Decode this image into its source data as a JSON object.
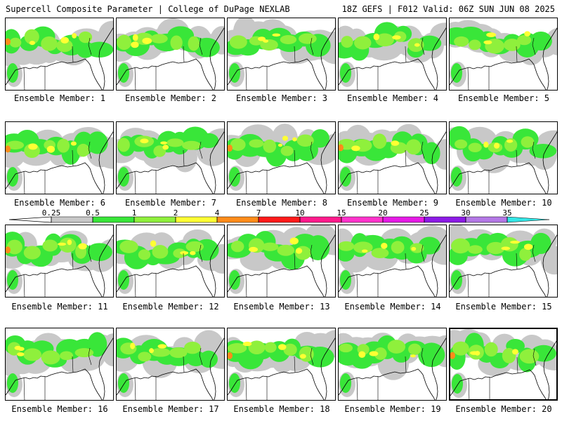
{
  "header": {
    "left": "Supercell Composite Parameter | College of DuPage NEXLAB",
    "right": "18Z GEFS | F012 Valid: 06Z SUN JUN 08 2025"
  },
  "legend": {
    "ticks": [
      "0.25",
      "0.5",
      "1",
      "2",
      "4",
      "7",
      "10",
      "15",
      "20",
      "25",
      "30",
      "35"
    ],
    "colors": [
      "#c8c8c8",
      "#39e639",
      "#8ff03c",
      "#ffff33",
      "#ff8c1a",
      "#ff1a1a",
      "#ff1a8c",
      "#ff33cc",
      "#e61ae6",
      "#8c1ae6",
      "#b478e6",
      "#33e6e6"
    ]
  },
  "panels": [
    {
      "label": "Ensemble Member: 1"
    },
    {
      "label": "Ensemble Member: 2"
    },
    {
      "label": "Ensemble Member: 3"
    },
    {
      "label": "Ensemble Member: 4"
    },
    {
      "label": "Ensemble Member: 5"
    },
    {
      "label": "Ensemble Member: 6"
    },
    {
      "label": "Ensemble Member: 7"
    },
    {
      "label": "Ensemble Member: 8"
    },
    {
      "label": "Ensemble Member: 9"
    },
    {
      "label": "Ensemble Member: 10"
    },
    {
      "label": "Ensemble Member: 11"
    },
    {
      "label": "Ensemble Member: 12"
    },
    {
      "label": "Ensemble Member: 13"
    },
    {
      "label": "Ensemble Member: 14"
    },
    {
      "label": "Ensemble Member: 15"
    },
    {
      "label": "Ensemble Member: 16"
    },
    {
      "label": "Ensemble Member: 17"
    },
    {
      "label": "Ensemble Member: 18"
    },
    {
      "label": "Ensemble Member: 19"
    },
    {
      "label": "Ensemble Member: 20"
    }
  ]
}
